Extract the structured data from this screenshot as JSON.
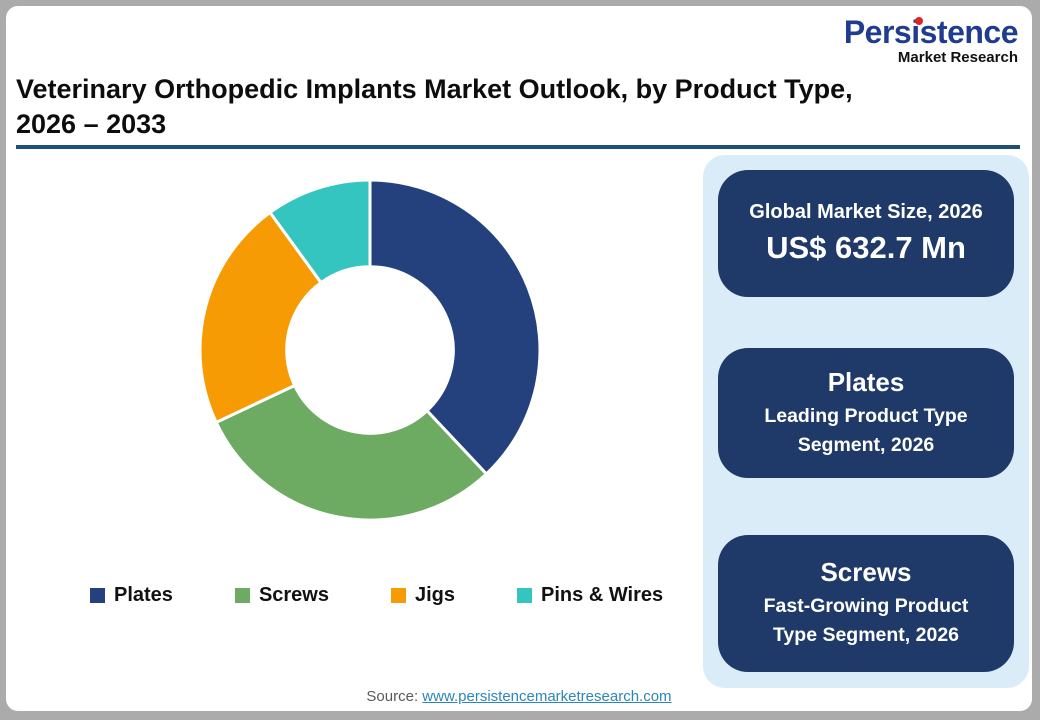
{
  "header": {
    "logo": {
      "name": "Persistence",
      "tagline": "Market Research"
    },
    "title_line1": "Veterinary Orthopedic Implants Market Outlook, by Product Type,",
    "title_line2": "2026 – 2033"
  },
  "chart_data": {
    "type": "pie",
    "subtype": "donut",
    "title": "Veterinary Orthopedic Implants Market Outlook, by Product Type, 2026 – 2033",
    "categories": [
      "Plates",
      "Screws",
      "Jigs",
      "Pins & Wires"
    ],
    "values": [
      38,
      30,
      22,
      10
    ],
    "values_unit": "percent share (estimated from arc angles, no data labels shown)",
    "colors": [
      "#24417E",
      "#6DAB63",
      "#F79B04",
      "#35C5C1"
    ],
    "start_angle_deg": 0,
    "direction": "clockwise",
    "inner_radius_ratio": 0.49,
    "segment_gap_color": "#FFFFFF",
    "legend_position": "bottom"
  },
  "panel": {
    "cards": [
      {
        "title": "Global Market Size, 2026",
        "value": "US$ 632.7 Mn"
      },
      {
        "title": "Plates",
        "subtitle": "Leading Product Type Segment, 2026"
      },
      {
        "title": "Screws",
        "subtitle": "Fast-Growing Product Type Segment, 2026"
      }
    ]
  },
  "footer": {
    "source_label": "Source:",
    "source_link_text": "www.persistencemarketresearch.com"
  },
  "colors": {
    "logo_blue": "#203C8E",
    "logo_dot_red": "#E42320",
    "title_text": "#0D0D0D",
    "title_rule": "#1F4E79",
    "panel_bg": "#D9ECF8",
    "card_bg": "#1F3A68",
    "card_text": "#FFFFFF",
    "link": "#2B87B8",
    "source_text": "#595959",
    "page_border": "#ABABAB"
  }
}
